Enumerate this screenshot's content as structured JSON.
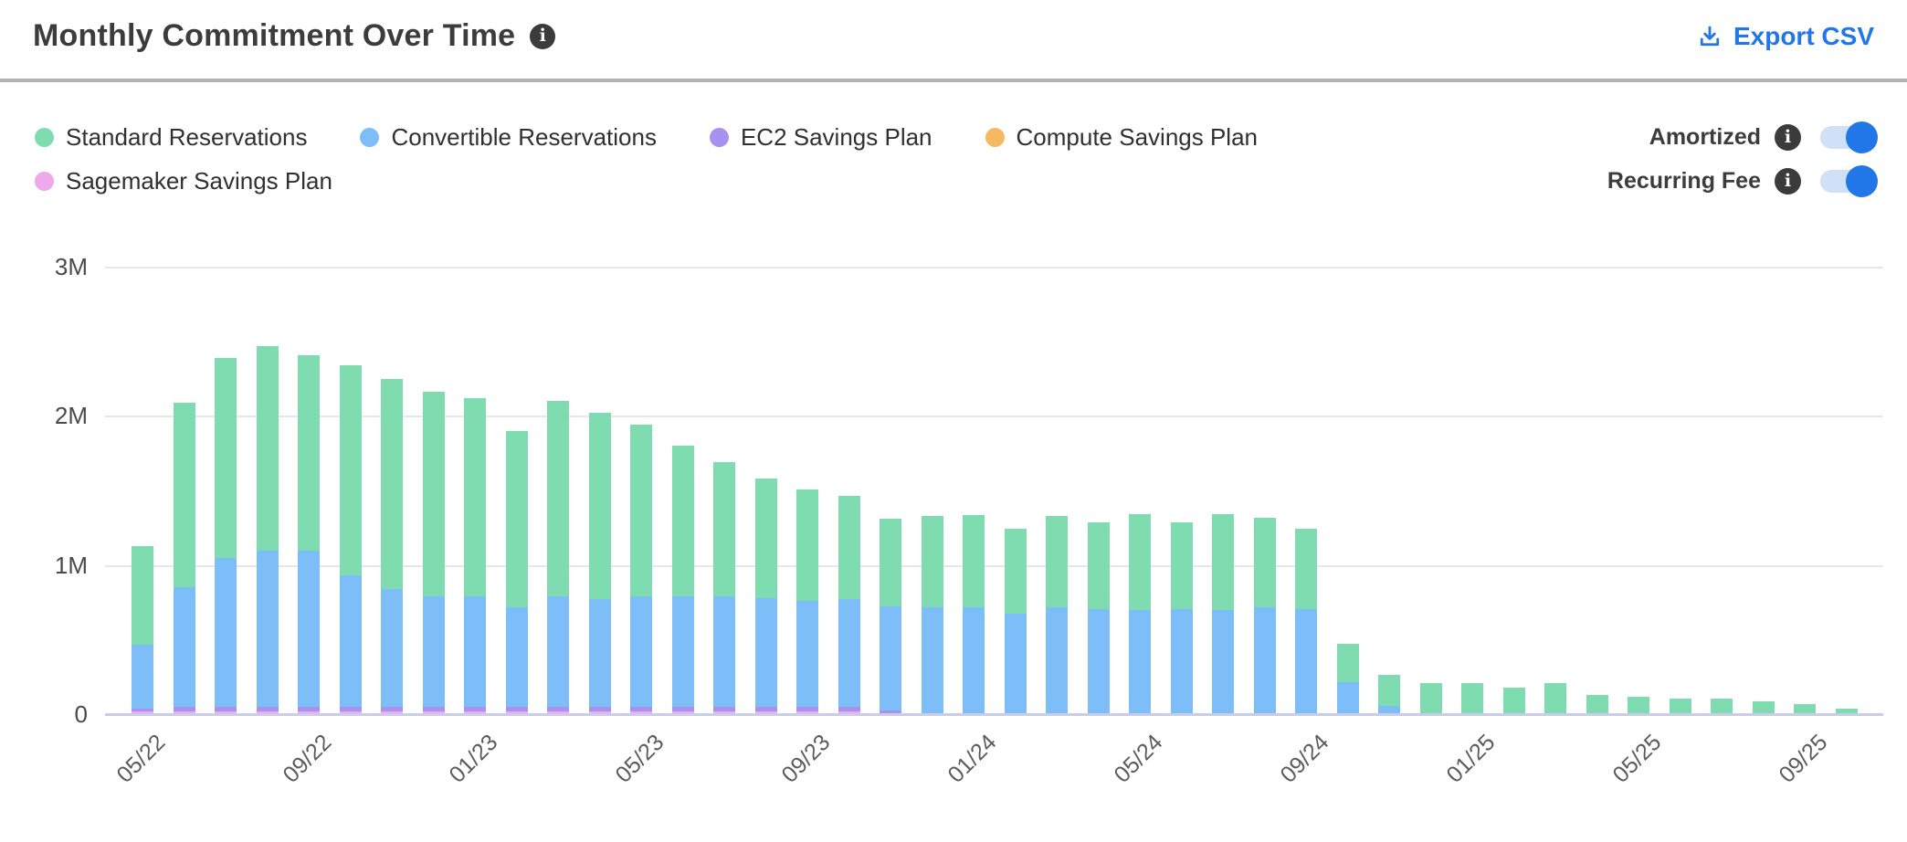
{
  "header": {
    "title": "Monthly Commitment Over Time",
    "title_info_icon": "info-icon",
    "export_label": "Export CSV",
    "accent_color": "#2176e8"
  },
  "legend": {
    "items": [
      {
        "label": "Standard Reservations",
        "color": "#7edcb0"
      },
      {
        "label": "Convertible Reservations",
        "color": "#7dbef9"
      },
      {
        "label": "EC2 Savings Plan",
        "color": "#a991f0"
      },
      {
        "label": "Compute Savings Plan",
        "color": "#f5ba61"
      },
      {
        "label": "Sagemaker Savings Plan",
        "color": "#efa9ea"
      }
    ]
  },
  "toggles": [
    {
      "label": "Amortized",
      "on": true
    },
    {
      "label": "Recurring Fee",
      "on": true
    }
  ],
  "toggle_colors": {
    "track": "#cfe1f9",
    "knob": "#2176e8"
  },
  "chart_data": {
    "type": "bar",
    "stacked": true,
    "title": "Monthly Commitment Over Time",
    "value_unit": "millions",
    "ylim": [
      0,
      3
    ],
    "ytick_labels": [
      "0",
      "1M",
      "2M",
      "3M"
    ],
    "grid": true,
    "legend_position": "top-left",
    "x_tick_every": 4,
    "categories": [
      "05/22",
      "06/22",
      "07/22",
      "08/22",
      "09/22",
      "10/22",
      "11/22",
      "12/22",
      "01/23",
      "02/23",
      "03/23",
      "04/23",
      "05/23",
      "06/23",
      "07/23",
      "08/23",
      "09/23",
      "10/23",
      "11/23",
      "12/23",
      "01/24",
      "02/24",
      "03/24",
      "04/24",
      "05/24",
      "06/24",
      "07/24",
      "08/24",
      "09/24",
      "10/24",
      "11/24",
      "12/24",
      "01/25",
      "02/25",
      "03/25",
      "04/25",
      "05/25",
      "06/25",
      "07/25",
      "08/25",
      "09/25",
      "10/25"
    ],
    "series": [
      {
        "name": "Standard Reservations",
        "color": "#7edcb0",
        "values": [
          0.66,
          1.24,
          1.34,
          1.37,
          1.31,
          1.41,
          1.41,
          1.37,
          1.33,
          1.18,
          1.31,
          1.25,
          1.15,
          1.01,
          0.9,
          0.8,
          0.75,
          0.69,
          0.59,
          0.61,
          0.62,
          0.57,
          0.61,
          0.58,
          0.64,
          0.58,
          0.64,
          0.6,
          0.54,
          0.26,
          0.21,
          0.2,
          0.2,
          0.17,
          0.2,
          0.12,
          0.11,
          0.1,
          0.1,
          0.08,
          0.06,
          0.03
        ]
      },
      {
        "name": "Convertible Reservations",
        "color": "#7dbef9",
        "values": [
          0.43,
          0.8,
          1.0,
          1.05,
          1.05,
          0.88,
          0.79,
          0.74,
          0.74,
          0.67,
          0.74,
          0.72,
          0.74,
          0.74,
          0.74,
          0.73,
          0.71,
          0.72,
          0.7,
          0.71,
          0.71,
          0.67,
          0.71,
          0.7,
          0.69,
          0.7,
          0.69,
          0.71,
          0.7,
          0.21,
          0.05,
          0,
          0,
          0,
          0,
          0,
          0,
          0,
          0,
          0,
          0,
          0
        ]
      },
      {
        "name": "EC2 Savings Plan",
        "color": "#a991f0",
        "values": [
          0.02,
          0.03,
          0.03,
          0.03,
          0.03,
          0.03,
          0.03,
          0.03,
          0.03,
          0.03,
          0.03,
          0.03,
          0.03,
          0.03,
          0.03,
          0.03,
          0.03,
          0.03,
          0.02,
          0,
          0,
          0,
          0,
          0,
          0,
          0,
          0,
          0,
          0,
          0,
          0,
          0,
          0,
          0,
          0,
          0,
          0,
          0,
          0,
          0,
          0,
          0
        ]
      },
      {
        "name": "Compute Savings Plan",
        "color": "#f5ba61",
        "values": [
          0,
          0,
          0,
          0,
          0,
          0,
          0,
          0,
          0,
          0,
          0,
          0,
          0,
          0,
          0,
          0,
          0,
          0,
          0,
          0,
          0,
          0,
          0,
          0,
          0,
          0,
          0,
          0,
          0,
          0,
          0,
          0,
          0,
          0,
          0,
          0,
          0,
          0,
          0,
          0,
          0,
          0
        ]
      },
      {
        "name": "Sagemaker Savings Plan",
        "color": "#efa9ea",
        "values": [
          0.01,
          0.01,
          0.01,
          0.01,
          0.01,
          0.01,
          0.01,
          0.01,
          0.01,
          0.01,
          0.01,
          0.01,
          0.01,
          0.01,
          0.01,
          0.01,
          0.01,
          0.01,
          0,
          0,
          0,
          0,
          0,
          0,
          0,
          0,
          0,
          0,
          0,
          0,
          0,
          0,
          0,
          0,
          0,
          0,
          0,
          0,
          0,
          0,
          0,
          0
        ]
      }
    ]
  }
}
